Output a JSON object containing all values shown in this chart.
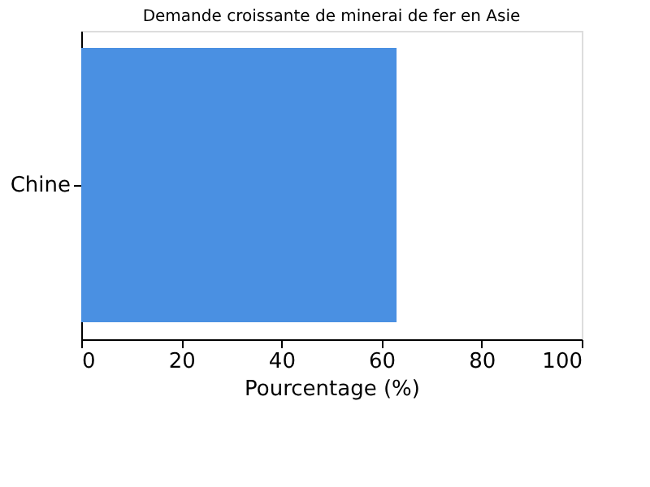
{
  "chart_data": {
    "type": "bar",
    "orientation": "horizontal",
    "title": "Demande croissante de minerai de fer en Asie",
    "xlabel": "Pourcentage (%)",
    "categories": [
      "Chine"
    ],
    "values": [
      63
    ],
    "color": "#4a90e2",
    "xlim": [
      0,
      100
    ],
    "xticks": [
      0,
      20,
      40,
      60,
      80,
      100
    ],
    "grid": false
  }
}
